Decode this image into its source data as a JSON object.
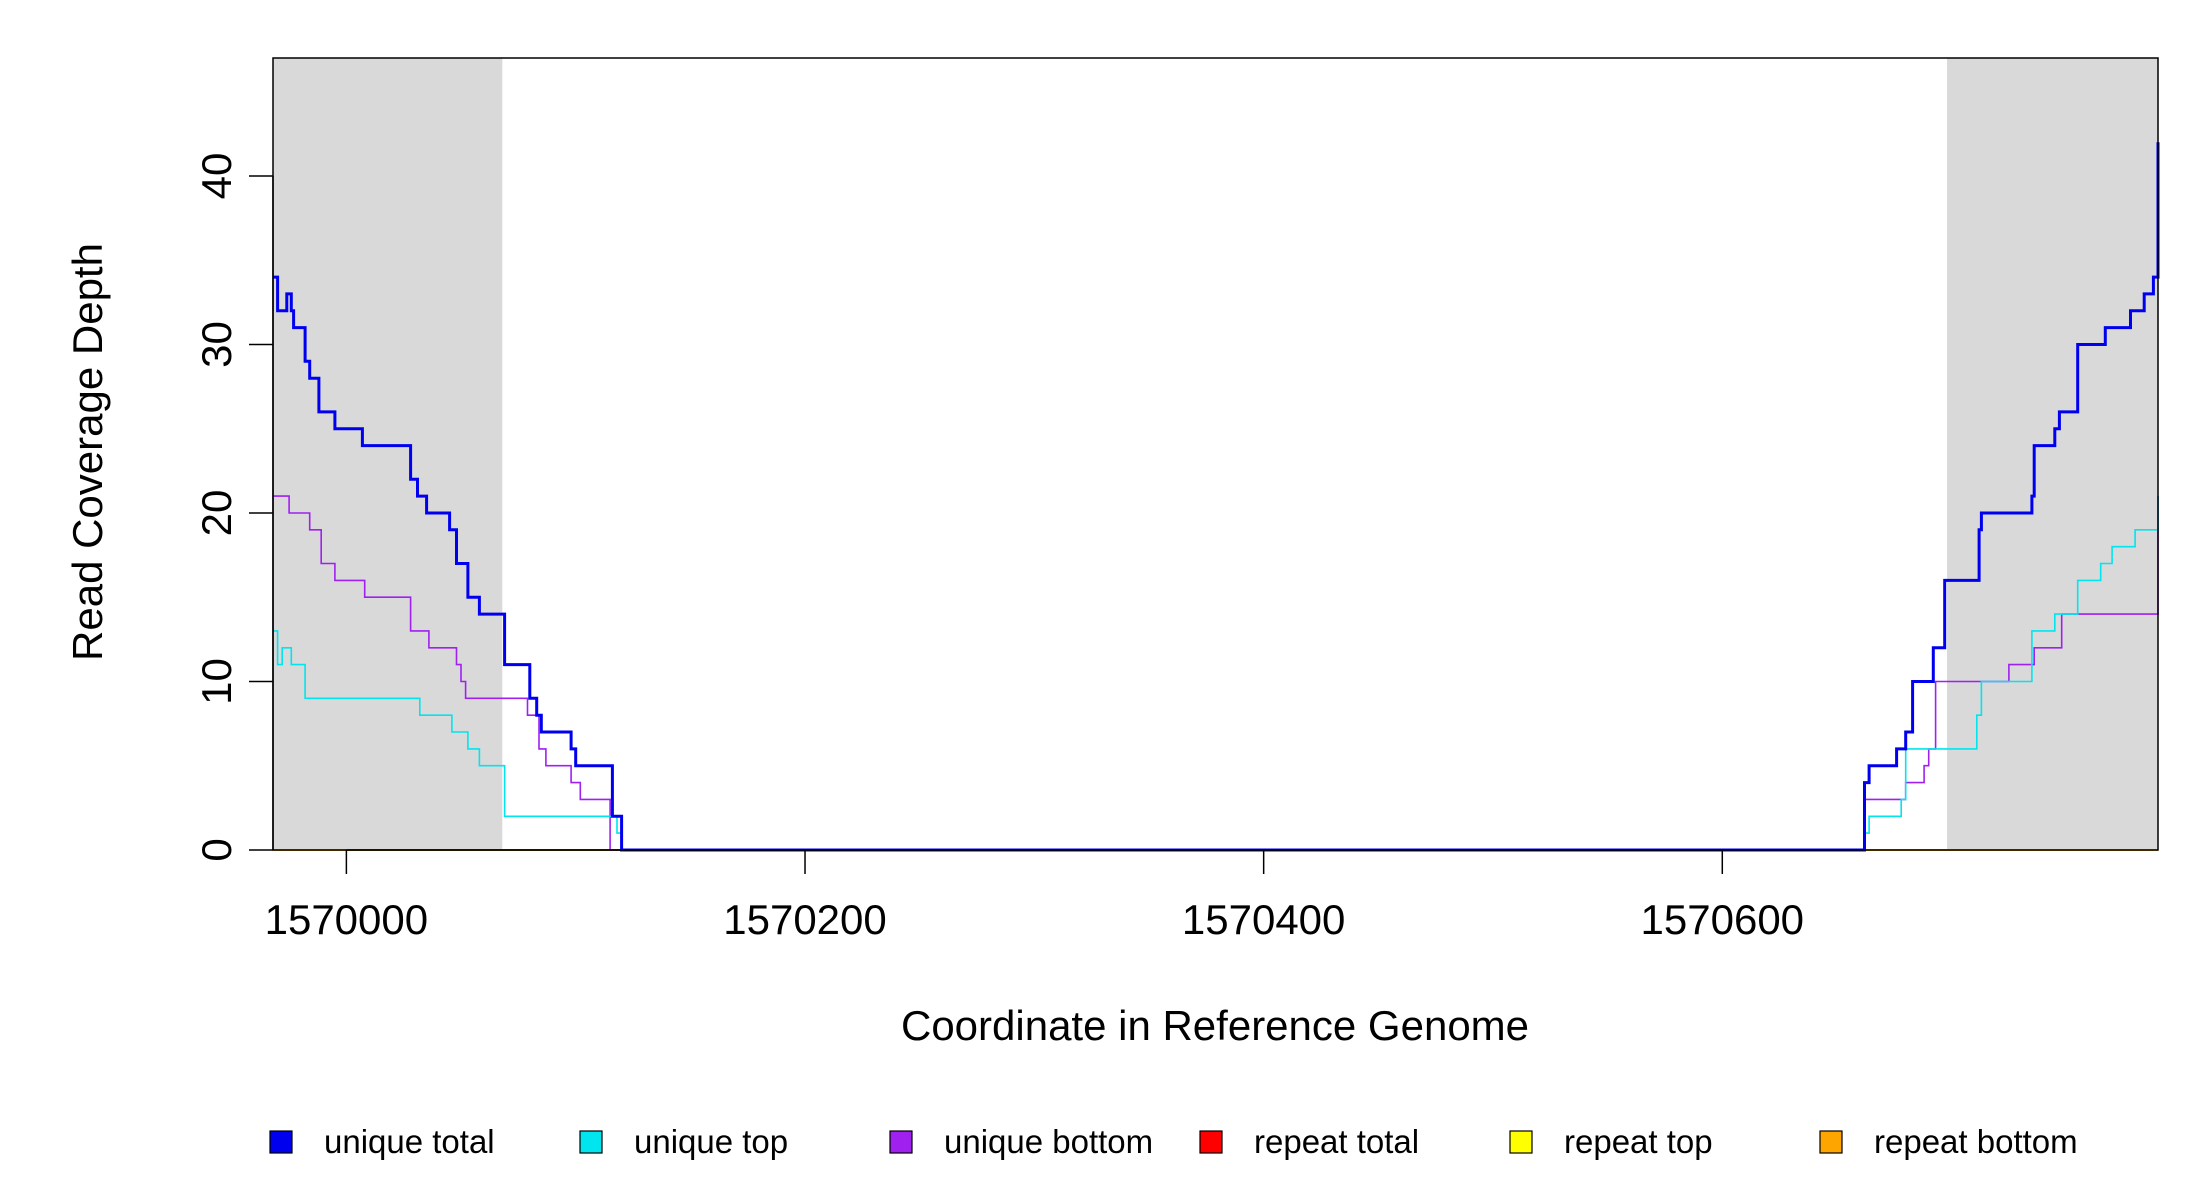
{
  "chart_data": {
    "type": "line",
    "xlabel": "Coordinate in Reference Genome",
    "ylabel": "Read Coverage Depth",
    "xlim": [
      1569968,
      1570790
    ],
    "ylim": [
      0,
      47
    ],
    "x_ticks": [
      1570000,
      1570200,
      1570400,
      1570600
    ],
    "x_tick_labels": [
      "1570000",
      "1570200",
      "1570400",
      "1570600"
    ],
    "y_ticks": [
      0,
      10,
      20,
      30,
      40
    ],
    "y_tick_labels": [
      "0",
      "10",
      "20",
      "30",
      "40"
    ],
    "shaded_regions": [
      {
        "start": 1569968,
        "end": 1570068
      },
      {
        "start": 1570698,
        "end": 1570790
      }
    ],
    "legend_position": "bottom",
    "series": [
      {
        "name": "unique total",
        "color": "#0000ee",
        "width": 3,
        "points": [
          [
            1569968,
            34
          ],
          [
            1569970,
            32
          ],
          [
            1569974,
            33
          ],
          [
            1569976,
            32
          ],
          [
            1569977,
            31
          ],
          [
            1569982,
            29
          ],
          [
            1569984,
            28
          ],
          [
            1569988,
            26
          ],
          [
            1569995,
            25
          ],
          [
            1570007,
            24
          ],
          [
            1570028,
            22
          ],
          [
            1570031,
            21
          ],
          [
            1570035,
            20
          ],
          [
            1570045,
            19
          ],
          [
            1570048,
            17
          ],
          [
            1570053,
            15
          ],
          [
            1570058,
            14
          ],
          [
            1570069,
            11
          ],
          [
            1570080,
            9
          ],
          [
            1570083,
            8
          ],
          [
            1570085,
            7
          ],
          [
            1570098,
            6
          ],
          [
            1570100,
            5
          ],
          [
            1570116,
            2
          ],
          [
            1570120,
            0
          ],
          [
            1570660,
            0
          ],
          [
            1570662,
            4
          ],
          [
            1570664,
            5
          ],
          [
            1570676,
            6
          ],
          [
            1570680,
            7
          ],
          [
            1570683,
            10
          ],
          [
            1570692,
            12
          ],
          [
            1570697,
            16
          ],
          [
            1570712,
            19
          ],
          [
            1570713,
            20
          ],
          [
            1570735,
            21
          ],
          [
            1570736,
            24
          ],
          [
            1570745,
            25
          ],
          [
            1570747,
            26
          ],
          [
            1570755,
            30
          ],
          [
            1570767,
            31
          ],
          [
            1570778,
            32
          ],
          [
            1570784,
            33
          ],
          [
            1570788,
            34
          ],
          [
            1570792,
            35
          ],
          [
            1570796,
            36
          ],
          [
            1570798,
            41
          ],
          [
            1570799,
            42
          ]
        ]
      },
      {
        "name": "unique top",
        "color": "#00e5ee",
        "width": 1.6,
        "points": [
          [
            1569968,
            13
          ],
          [
            1569970,
            11
          ],
          [
            1569972,
            12
          ],
          [
            1569976,
            11
          ],
          [
            1569982,
            9
          ],
          [
            1570032,
            8
          ],
          [
            1570046,
            7
          ],
          [
            1570053,
            6
          ],
          [
            1570058,
            5
          ],
          [
            1570069,
            2
          ],
          [
            1570118,
            1
          ],
          [
            1570120,
            0
          ],
          [
            1570660,
            0
          ],
          [
            1570662,
            1
          ],
          [
            1570664,
            2
          ],
          [
            1570678,
            3
          ],
          [
            1570680,
            6
          ],
          [
            1570697,
            6
          ],
          [
            1570711,
            8
          ],
          [
            1570713,
            10
          ],
          [
            1570735,
            13
          ],
          [
            1570745,
            14
          ],
          [
            1570755,
            16
          ],
          [
            1570765,
            17
          ],
          [
            1570770,
            18
          ],
          [
            1570780,
            19
          ],
          [
            1570798,
            20
          ],
          [
            1570799,
            21
          ]
        ]
      },
      {
        "name": "unique bottom",
        "color": "#a020f0",
        "width": 1.6,
        "points": [
          [
            1569968,
            21
          ],
          [
            1569975,
            20
          ],
          [
            1569984,
            19
          ],
          [
            1569989,
            17
          ],
          [
            1569995,
            16
          ],
          [
            1570008,
            15
          ],
          [
            1570028,
            13
          ],
          [
            1570036,
            12
          ],
          [
            1570048,
            11
          ],
          [
            1570050,
            10
          ],
          [
            1570052,
            9
          ],
          [
            1570079,
            8
          ],
          [
            1570084,
            6
          ],
          [
            1570087,
            5
          ],
          [
            1570098,
            4
          ],
          [
            1570102,
            3
          ],
          [
            1570115,
            0
          ],
          [
            1570660,
            0
          ],
          [
            1570662,
            3
          ],
          [
            1570680,
            4
          ],
          [
            1570688,
            5
          ],
          [
            1570690,
            6
          ],
          [
            1570693,
            10
          ],
          [
            1570725,
            11
          ],
          [
            1570736,
            12
          ],
          [
            1570748,
            14
          ],
          [
            1570790,
            15
          ],
          [
            1570795,
            16
          ],
          [
            1570797,
            20
          ],
          [
            1570799,
            21
          ]
        ]
      },
      {
        "name": "repeat total",
        "color": "#ff0000",
        "width": 2,
        "points": [
          [
            1569968,
            0
          ],
          [
            1570799,
            0
          ]
        ]
      },
      {
        "name": "repeat top",
        "color": "#ffff00",
        "width": 2,
        "points": [
          [
            1569968,
            0
          ],
          [
            1570799,
            0
          ]
        ]
      },
      {
        "name": "repeat bottom",
        "color": "#ffa500",
        "width": 2,
        "points": [
          [
            1569968,
            0
          ],
          [
            1570799,
            0
          ]
        ]
      }
    ]
  }
}
